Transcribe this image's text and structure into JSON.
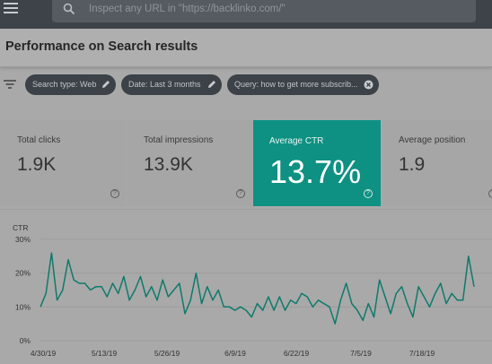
{
  "search": {
    "placeholder": "Inspect any URL in \"https://backlinko.com/\""
  },
  "page": {
    "title": "Performance on Search results"
  },
  "filters": [
    {
      "label": "Search type: Web",
      "icon": "pencil-icon"
    },
    {
      "label": "Date: Last 3 months",
      "icon": "pencil-icon"
    },
    {
      "label": "Query: how to get more subscrib...",
      "icon": "close-circle-icon"
    }
  ],
  "metrics": [
    {
      "label": "Total clicks",
      "value": "1.9K"
    },
    {
      "label": "Total impressions",
      "value": "13.9K"
    },
    {
      "label": "Average CTR",
      "value": "13.7%"
    },
    {
      "label": "Average position",
      "value": "1.9"
    }
  ],
  "colors": {
    "accent": "#0e9183",
    "line": "#0e7a6a",
    "topbar": "#3d4348"
  },
  "chart_data": {
    "type": "line",
    "ylabel": "CTR",
    "ylim": [
      0,
      30
    ],
    "yticks": [
      "0%",
      "10%",
      "20%",
      "30%"
    ],
    "xticks": [
      "4/30/19",
      "5/13/19",
      "5/26/19",
      "6/9/19",
      "6/22/19",
      "7/5/19",
      "7/18/19"
    ],
    "grid": true,
    "series": [
      {
        "values": [
          10,
          14,
          26,
          12,
          15,
          24,
          18,
          17,
          17,
          15,
          16,
          16,
          13,
          17,
          14,
          19,
          12,
          15,
          19,
          13,
          16,
          12,
          18,
          13,
          15,
          17,
          8,
          12,
          20,
          11,
          16,
          12,
          15,
          10,
          10,
          9,
          10,
          9,
          7,
          11,
          9,
          13,
          9,
          13,
          9,
          12,
          11,
          14,
          13,
          10,
          12,
          11,
          10,
          5,
          12,
          17,
          11,
          9,
          6,
          11,
          7,
          18,
          13,
          8,
          14,
          16,
          11,
          7,
          16,
          13,
          10,
          14,
          17,
          11,
          14,
          12,
          12,
          25,
          16
        ]
      }
    ]
  }
}
